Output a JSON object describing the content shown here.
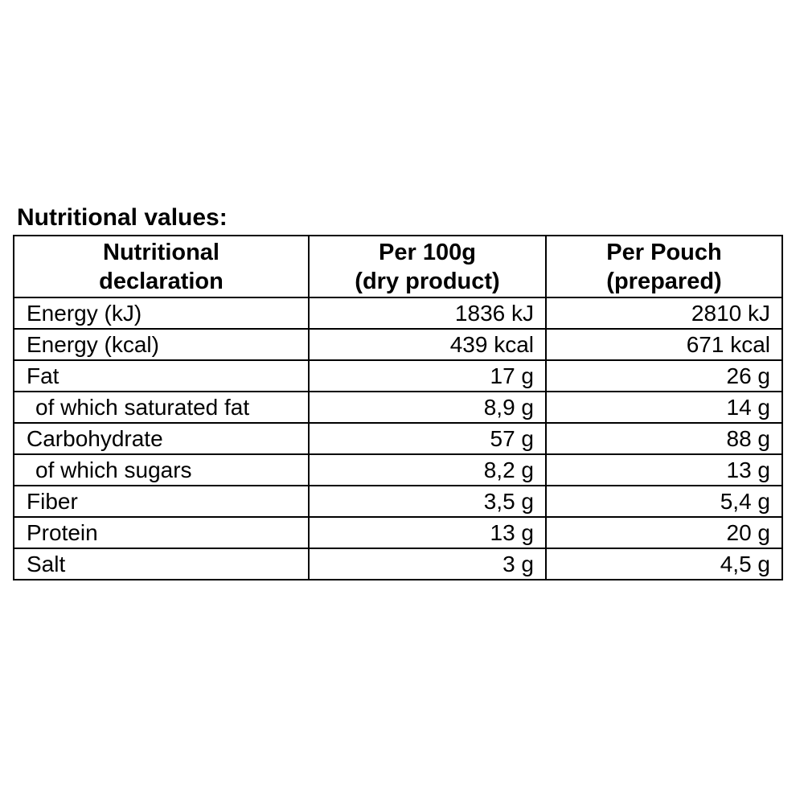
{
  "title": "Nutritional values:",
  "colors": {
    "text": "#000000",
    "border": "#000000",
    "background": "#ffffff"
  },
  "table": {
    "columns": [
      {
        "line1": "Nutritional",
        "line2": "declaration"
      },
      {
        "line1": "Per 100g",
        "line2": "(dry product)"
      },
      {
        "line1": "Per Pouch",
        "line2": "(prepared)"
      }
    ],
    "rows": [
      {
        "label": "Energy (kJ)",
        "per_100g": "1836 kJ",
        "per_pouch": "2810 kJ",
        "indent": false
      },
      {
        "label": "Energy (kcal)",
        "per_100g": "439 kcal",
        "per_pouch": "671 kcal",
        "indent": false
      },
      {
        "label": "Fat",
        "per_100g": "17 g",
        "per_pouch": "26 g",
        "indent": false
      },
      {
        "label": "of which saturated fat",
        "per_100g": "8,9 g",
        "per_pouch": "14 g",
        "indent": true
      },
      {
        "label": "Carbohydrate",
        "per_100g": "57 g",
        "per_pouch": "88 g",
        "indent": false
      },
      {
        "label": "of which sugars",
        "per_100g": "8,2 g",
        "per_pouch": "13 g",
        "indent": true
      },
      {
        "label": "Fiber",
        "per_100g": "3,5 g",
        "per_pouch": "5,4 g",
        "indent": false
      },
      {
        "label": "Protein",
        "per_100g": "13 g",
        "per_pouch": "20 g",
        "indent": false
      },
      {
        "label": "Salt",
        "per_100g": "3 g",
        "per_pouch": "4,5 g",
        "indent": false
      }
    ]
  }
}
